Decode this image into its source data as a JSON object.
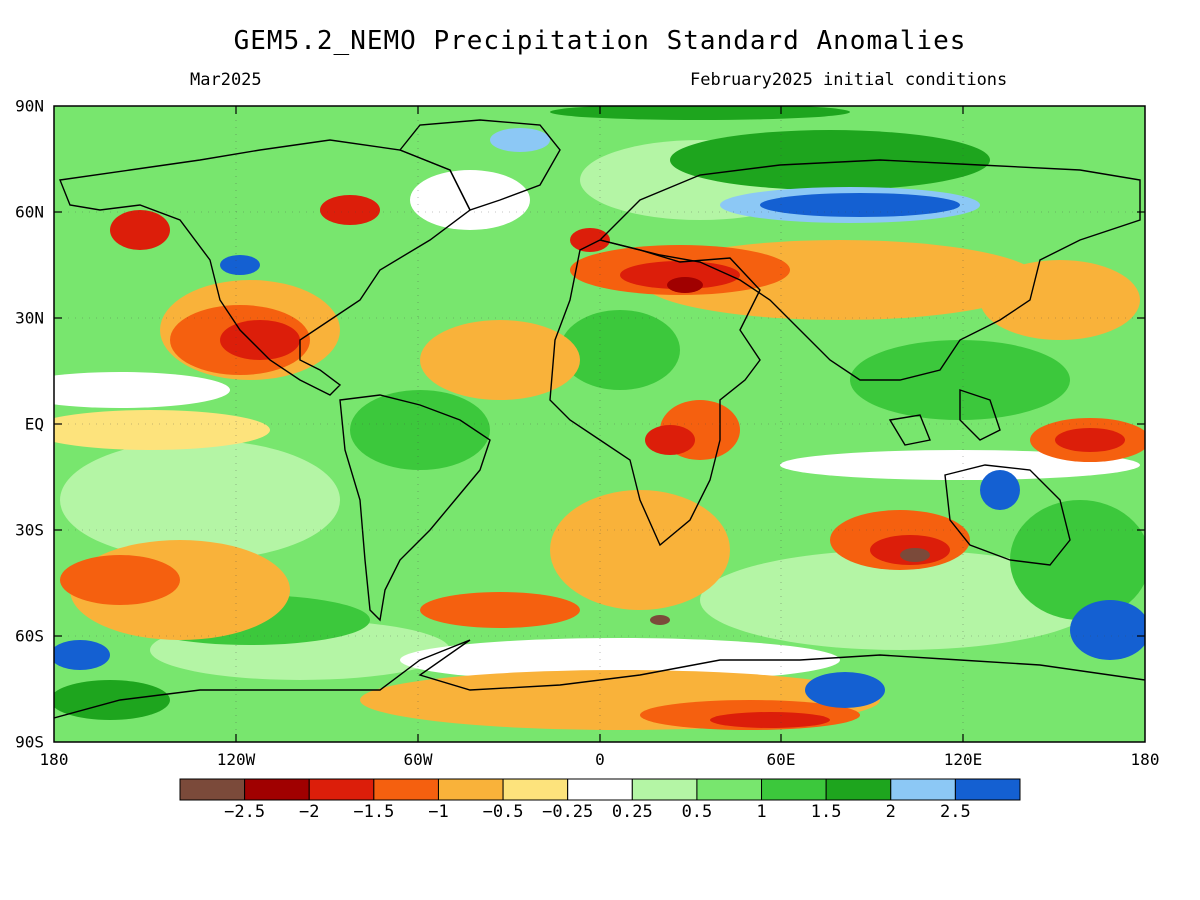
{
  "title": "GEM5.2_NEMO Precipitation Standard Anomalies",
  "subtitle_left": "Mar2025",
  "subtitle_right": "February2025 initial conditions",
  "lat_labels": [
    "90N",
    "60N",
    "30N",
    "EQ",
    "30S",
    "60S",
    "90S"
  ],
  "lon_labels": [
    "180",
    "120W",
    "60W",
    "0",
    "60E",
    "120E",
    "180"
  ],
  "colorbar": {
    "colors": [
      "#7b4a3a",
      "#a00000",
      "#dc1e0a",
      "#f5600f",
      "#f9b23a",
      "#fde37c",
      "#ffffff",
      "#b4f5a5",
      "#78e66e",
      "#3cc83c",
      "#1ea51e",
      "#8cc8f5",
      "#1460d2"
    ],
    "labels": [
      "−2.5",
      "−2",
      "−1.5",
      "−1",
      "−0.5",
      "−0.25",
      "0.25",
      "0.5",
      "1",
      "1.5",
      "2",
      "2.5"
    ]
  }
}
